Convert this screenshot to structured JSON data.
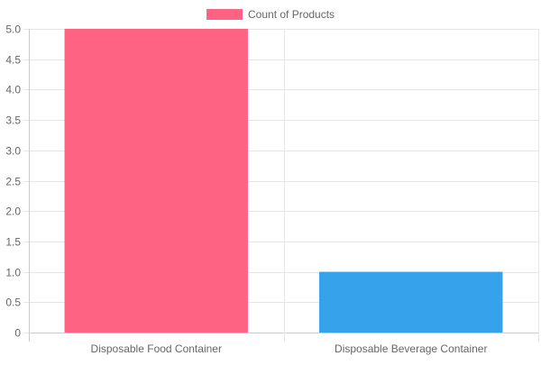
{
  "chart_data": {
    "type": "bar",
    "categories": [
      "Disposable Food Container",
      "Disposable Beverage Container"
    ],
    "series": [
      {
        "name": "Count of Products",
        "values": [
          5,
          1
        ]
      }
    ],
    "bar_colors": [
      "#ff6384",
      "#36a2eb"
    ],
    "ylim": [
      0,
      5
    ],
    "yticks": [
      "0",
      "0.5",
      "1.0",
      "1.5",
      "2.0",
      "2.5",
      "3.0",
      "3.5",
      "4.0",
      "4.5",
      "5.0"
    ],
    "grid": true,
    "legend_position": "top-center"
  },
  "legend": {
    "label": "Count of Products",
    "color": "#ff6384"
  }
}
